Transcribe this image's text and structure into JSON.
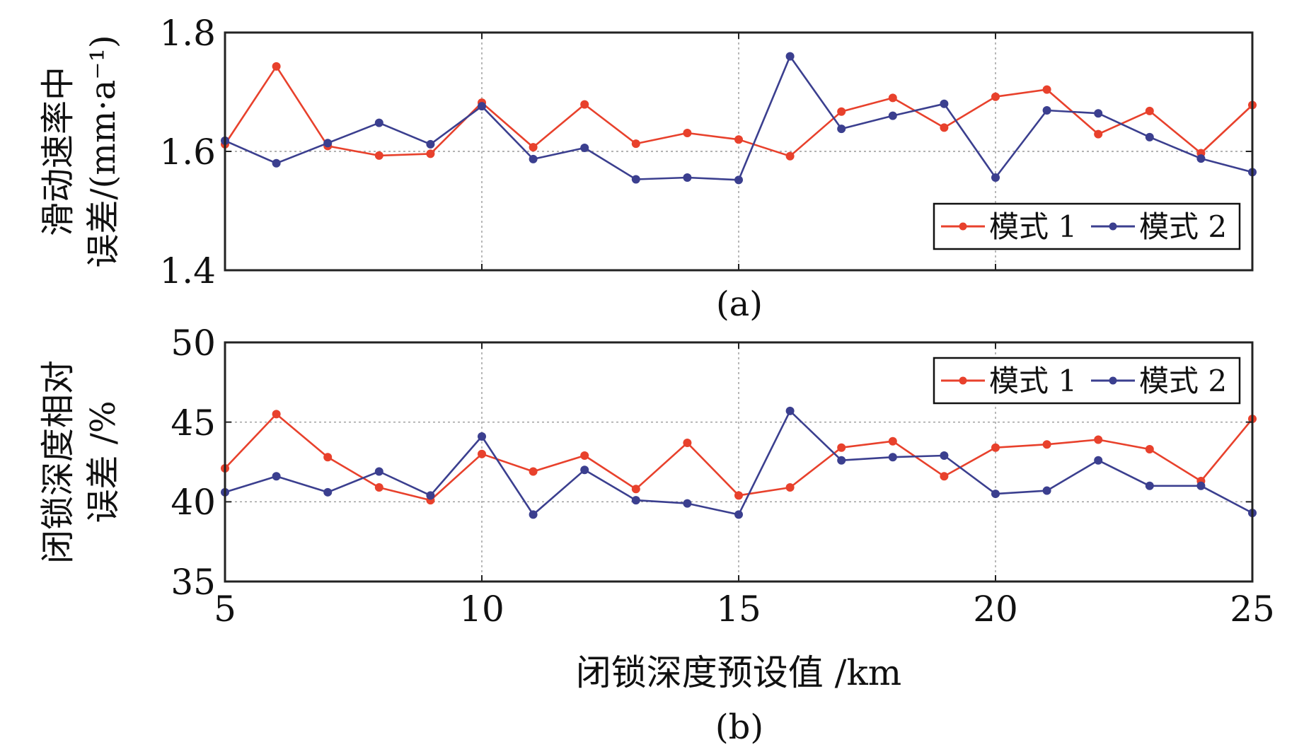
{
  "chart_data": [
    {
      "type": "line",
      "panel_label": "(a)",
      "ylabel_lines": [
        "滑动速率中",
        "误差/(mm·a⁻¹)"
      ],
      "xlabel": "",
      "x": [
        5,
        6,
        7,
        8,
        9,
        10,
        11,
        12,
        13,
        14,
        15,
        16,
        17,
        18,
        19,
        20,
        21,
        22,
        23,
        24,
        25
      ],
      "xlim": [
        5,
        25
      ],
      "xticks": [
        5,
        10,
        15,
        20,
        25
      ],
      "xtick_labels_shown": false,
      "ylim": [
        1.4,
        1.8
      ],
      "yticks": [
        1.4,
        1.6,
        1.8
      ],
      "ytick_labels": [
        "1.4",
        "1.6",
        "1.8"
      ],
      "grid": true,
      "legend_position": "lower-right",
      "series": [
        {
          "name": "模式 1",
          "color": "#e8412c",
          "values": [
            1.612,
            1.743,
            1.609,
            1.593,
            1.596,
            1.682,
            1.607,
            1.679,
            1.613,
            1.631,
            1.62,
            1.592,
            1.667,
            1.69,
            1.64,
            1.692,
            1.704,
            1.629,
            1.668,
            1.597,
            1.678
          ]
        },
        {
          "name": "模式 2",
          "color": "#3b3f8f",
          "values": [
            1.618,
            1.58,
            1.614,
            1.648,
            1.612,
            1.676,
            1.587,
            1.606,
            1.553,
            1.556,
            1.552,
            1.76,
            1.638,
            1.66,
            1.68,
            1.556,
            1.669,
            1.664,
            1.624,
            1.588,
            1.565
          ]
        }
      ]
    },
    {
      "type": "line",
      "panel_label": "(b)",
      "ylabel_lines": [
        "闭锁深度相对",
        "误差 /%"
      ],
      "xlabel": "闭锁深度预设值 /km",
      "x": [
        5,
        6,
        7,
        8,
        9,
        10,
        11,
        12,
        13,
        14,
        15,
        16,
        17,
        18,
        19,
        20,
        21,
        22,
        23,
        24,
        25
      ],
      "xlim": [
        5,
        25
      ],
      "xticks": [
        5,
        10,
        15,
        20,
        25
      ],
      "xtick_labels": [
        "5",
        "10",
        "15",
        "20",
        "25"
      ],
      "ylim": [
        35,
        50
      ],
      "yticks": [
        35,
        40,
        45,
        50
      ],
      "ytick_labels": [
        "35",
        "40",
        "45",
        "50"
      ],
      "grid": true,
      "legend_position": "top-right",
      "series": [
        {
          "name": "模式 1",
          "color": "#e8412c",
          "values": [
            42.1,
            45.5,
            42.8,
            40.9,
            40.1,
            43.0,
            41.9,
            42.9,
            40.8,
            43.7,
            40.4,
            40.9,
            43.4,
            43.8,
            41.6,
            43.4,
            43.6,
            43.9,
            43.3,
            41.3,
            45.2
          ]
        },
        {
          "name": "模式 2",
          "color": "#3b3f8f",
          "values": [
            40.6,
            41.6,
            40.6,
            41.9,
            40.4,
            44.1,
            39.2,
            42.0,
            40.1,
            39.9,
            39.2,
            45.7,
            42.6,
            42.8,
            42.9,
            40.5,
            40.7,
            42.6,
            41.0,
            41.0,
            39.3
          ]
        }
      ]
    }
  ]
}
